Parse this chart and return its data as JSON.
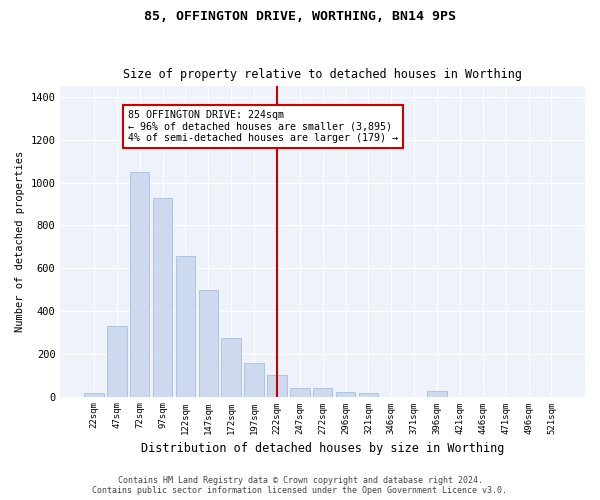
{
  "title1": "85, OFFINGTON DRIVE, WORTHING, BN14 9PS",
  "title2": "Size of property relative to detached houses in Worthing",
  "xlabel": "Distribution of detached houses by size in Worthing",
  "ylabel": "Number of detached properties",
  "bar_labels": [
    "22sqm",
    "47sqm",
    "72sqm",
    "97sqm",
    "122sqm",
    "147sqm",
    "172sqm",
    "197sqm",
    "222sqm",
    "247sqm",
    "272sqm",
    "296sqm",
    "321sqm",
    "346sqm",
    "371sqm",
    "396sqm",
    "421sqm",
    "446sqm",
    "471sqm",
    "496sqm",
    "521sqm"
  ],
  "bar_values": [
    15,
    330,
    1050,
    930,
    655,
    500,
    275,
    155,
    100,
    40,
    40,
    20,
    15,
    0,
    0,
    25,
    0,
    0,
    0,
    0,
    0
  ],
  "bar_color": "#ccd9ee",
  "bar_edge_color": "#a8bedd",
  "vline_index": 8,
  "vline_color": "#cc0000",
  "annotation_text": "85 OFFINGTON DRIVE: 224sqm\n← 96% of detached houses are smaller (3,895)\n4% of semi-detached houses are larger (179) →",
  "annotation_box_color": "white",
  "annotation_box_edge": "#cc0000",
  "ylim": [
    0,
    1450
  ],
  "yticks": [
    0,
    200,
    400,
    600,
    800,
    1000,
    1200,
    1400
  ],
  "bg_color": "#eef2fa",
  "footer1": "Contains HM Land Registry data © Crown copyright and database right 2024.",
  "footer2": "Contains public sector information licensed under the Open Government Licence v3.0."
}
